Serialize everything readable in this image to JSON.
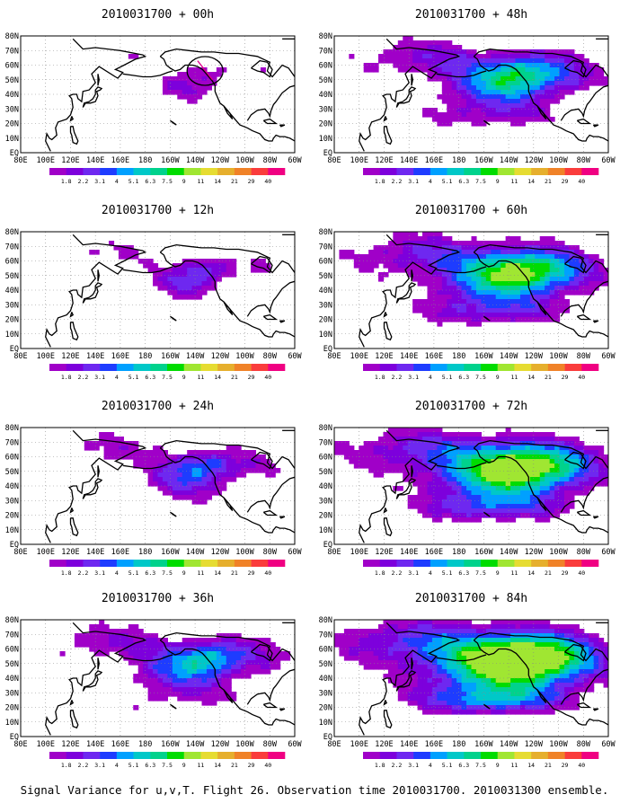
{
  "figure": {
    "caption": "Signal Variance for u,v,T. Flight 26. Observation time 2010031700. 2010031300 ensemble."
  },
  "colorbar": {
    "labels": [
      "1.8",
      "2.2",
      "3.1",
      "4",
      "5.1",
      "6.3",
      "7.5",
      "9",
      "11",
      "14",
      "21",
      "29",
      "40"
    ],
    "colors": [
      "#a000c8",
      "#7d00dc",
      "#6e28f0",
      "#1e3cff",
      "#00a0ff",
      "#00c8c8",
      "#00d28c",
      "#00dc00",
      "#a0e632",
      "#e6dc32",
      "#e6af2d",
      "#f08228",
      "#fa3c3c",
      "#f00082"
    ]
  },
  "axes": {
    "x_ticks": [
      "80E",
      "100E",
      "120E",
      "140E",
      "160E",
      "180",
      "160W",
      "140W",
      "120W",
      "100W",
      "80W",
      "60W"
    ],
    "y_ticks": [
      "80N",
      "70N",
      "60N",
      "50N",
      "40N",
      "30N",
      "20N",
      "10N",
      "EQ"
    ]
  },
  "panels": [
    {
      "title": "2010031700 + 00h",
      "intensity": 0.15,
      "circle": true
    },
    {
      "title": "2010031700 + 12h",
      "intensity": 0.28,
      "circle": false
    },
    {
      "title": "2010031700 + 24h",
      "intensity": 0.4,
      "circle": false
    },
    {
      "title": "2010031700 + 36h",
      "intensity": 0.55,
      "circle": false
    },
    {
      "title": "2010031700 + 48h",
      "intensity": 0.65,
      "circle": false
    },
    {
      "title": "2010031700 + 60h",
      "intensity": 0.78,
      "circle": false
    },
    {
      "title": "2010031700 + 72h",
      "intensity": 0.88,
      "circle": false
    },
    {
      "title": "2010031700 + 84h",
      "intensity": 1.0,
      "circle": false
    }
  ]
}
